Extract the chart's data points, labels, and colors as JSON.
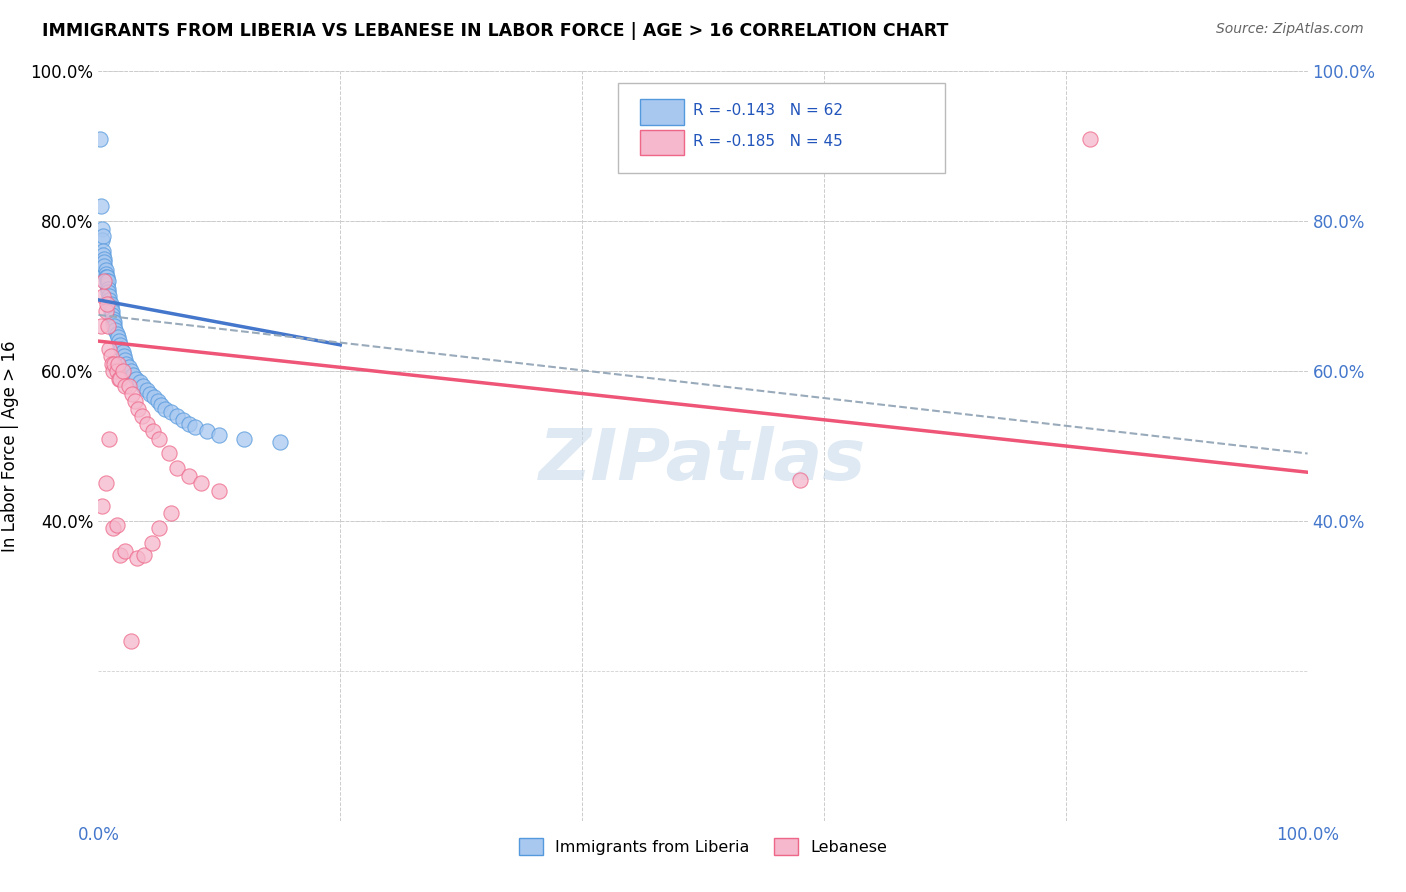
{
  "title": "IMMIGRANTS FROM LIBERIA VS LEBANESE IN LABOR FORCE | AGE > 16 CORRELATION CHART",
  "source": "Source: ZipAtlas.com",
  "ylabel": "In Labor Force | Age > 16",
  "xlim": [
    0.0,
    1.0
  ],
  "ylim": [
    0.0,
    1.0
  ],
  "legend1_R": "R = -0.143",
  "legend1_N": "N = 62",
  "legend2_R": "R = -0.185",
  "legend2_N": "N = 45",
  "color_liberia_fill": "#a8c8f0",
  "color_liberia_edge": "#5599dd",
  "color_lebanese_fill": "#f5b8cc",
  "color_lebanese_edge": "#ee6688",
  "color_line_liberia": "#4477cc",
  "color_line_lebanese": "#ee5577",
  "color_dashed": "#99aabb",
  "watermark_color": "#c5d8ea",
  "liberia_x": [
    0.001,
    0.002,
    0.003,
    0.003,
    0.004,
    0.004,
    0.004,
    0.005,
    0.005,
    0.005,
    0.006,
    0.006,
    0.006,
    0.007,
    0.007,
    0.007,
    0.008,
    0.008,
    0.008,
    0.009,
    0.009,
    0.009,
    0.01,
    0.01,
    0.01,
    0.011,
    0.011,
    0.012,
    0.012,
    0.013,
    0.013,
    0.014,
    0.015,
    0.016,
    0.017,
    0.018,
    0.019,
    0.02,
    0.021,
    0.022,
    0.023,
    0.025,
    0.027,
    0.029,
    0.031,
    0.034,
    0.037,
    0.04,
    0.043,
    0.046,
    0.049,
    0.052,
    0.055,
    0.06,
    0.065,
    0.07,
    0.075,
    0.08,
    0.09,
    0.1,
    0.12,
    0.15
  ],
  "liberia_y": [
    0.91,
    0.82,
    0.79,
    0.775,
    0.78,
    0.76,
    0.755,
    0.75,
    0.745,
    0.74,
    0.735,
    0.73,
    0.725,
    0.725,
    0.72,
    0.715,
    0.72,
    0.71,
    0.705,
    0.7,
    0.695,
    0.69,
    0.69,
    0.685,
    0.68,
    0.68,
    0.675,
    0.67,
    0.665,
    0.665,
    0.66,
    0.655,
    0.65,
    0.645,
    0.64,
    0.635,
    0.63,
    0.625,
    0.62,
    0.615,
    0.61,
    0.605,
    0.6,
    0.595,
    0.59,
    0.585,
    0.58,
    0.575,
    0.57,
    0.565,
    0.56,
    0.555,
    0.55,
    0.545,
    0.54,
    0.535,
    0.53,
    0.525,
    0.52,
    0.515,
    0.51,
    0.505
  ],
  "lebanese_x": [
    0.002,
    0.004,
    0.005,
    0.006,
    0.007,
    0.008,
    0.009,
    0.01,
    0.011,
    0.012,
    0.013,
    0.015,
    0.016,
    0.017,
    0.018,
    0.02,
    0.022,
    0.025,
    0.028,
    0.03,
    0.033,
    0.036,
    0.04,
    0.045,
    0.05,
    0.058,
    0.065,
    0.075,
    0.085,
    0.1,
    0.58,
    0.82,
    0.003,
    0.006,
    0.009,
    0.012,
    0.015,
    0.018,
    0.022,
    0.027,
    0.032,
    0.038,
    0.044,
    0.05,
    0.06
  ],
  "lebanese_y": [
    0.66,
    0.7,
    0.72,
    0.68,
    0.69,
    0.66,
    0.63,
    0.62,
    0.61,
    0.6,
    0.61,
    0.6,
    0.61,
    0.59,
    0.59,
    0.6,
    0.58,
    0.58,
    0.57,
    0.56,
    0.55,
    0.54,
    0.53,
    0.52,
    0.51,
    0.49,
    0.47,
    0.46,
    0.45,
    0.44,
    0.455,
    0.91,
    0.42,
    0.45,
    0.51,
    0.39,
    0.395,
    0.355,
    0.36,
    0.24,
    0.35,
    0.355,
    0.37,
    0.39,
    0.41
  ],
  "lib_line_x0": 0.0,
  "lib_line_x1": 0.2,
  "lib_line_y0": 0.695,
  "lib_line_y1": 0.635,
  "leb_line_x0": 0.0,
  "leb_line_x1": 1.0,
  "leb_line_y0": 0.64,
  "leb_line_y1": 0.465,
  "dash_line_x0": 0.0,
  "dash_line_x1": 1.0,
  "dash_line_y0": 0.675,
  "dash_line_y1": 0.49
}
